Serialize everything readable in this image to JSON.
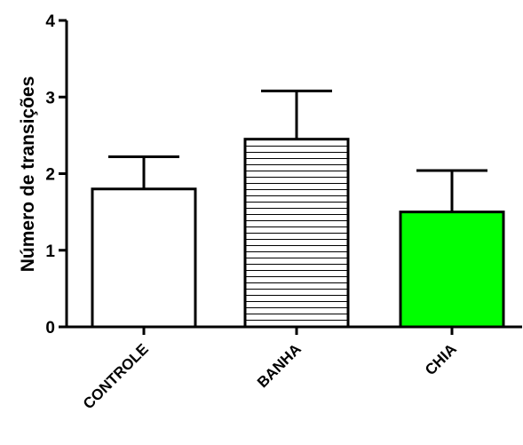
{
  "chart_data": {
    "type": "bar",
    "title": "",
    "xlabel": "",
    "ylabel": "Número de transições",
    "categories": [
      "CONTROLE",
      "BANHA",
      "CHIA"
    ],
    "values": [
      1.8,
      2.45,
      1.5
    ],
    "error_upper": [
      0.42,
      0.63,
      0.54
    ],
    "ylim": [
      0,
      4
    ],
    "yticks": [
      "0",
      "1",
      "2",
      "3",
      "4"
    ],
    "grid": false,
    "legend": "none",
    "bar_styles": [
      {
        "fill": "#ffffff",
        "pattern": "none"
      },
      {
        "fill": "#ffffff",
        "pattern": "horizontal-lines"
      },
      {
        "fill": "#00ff00",
        "pattern": "none"
      }
    ],
    "colors": {
      "axis": "#000000",
      "bar_stroke": "#000000",
      "chia": "#00ff00"
    }
  }
}
